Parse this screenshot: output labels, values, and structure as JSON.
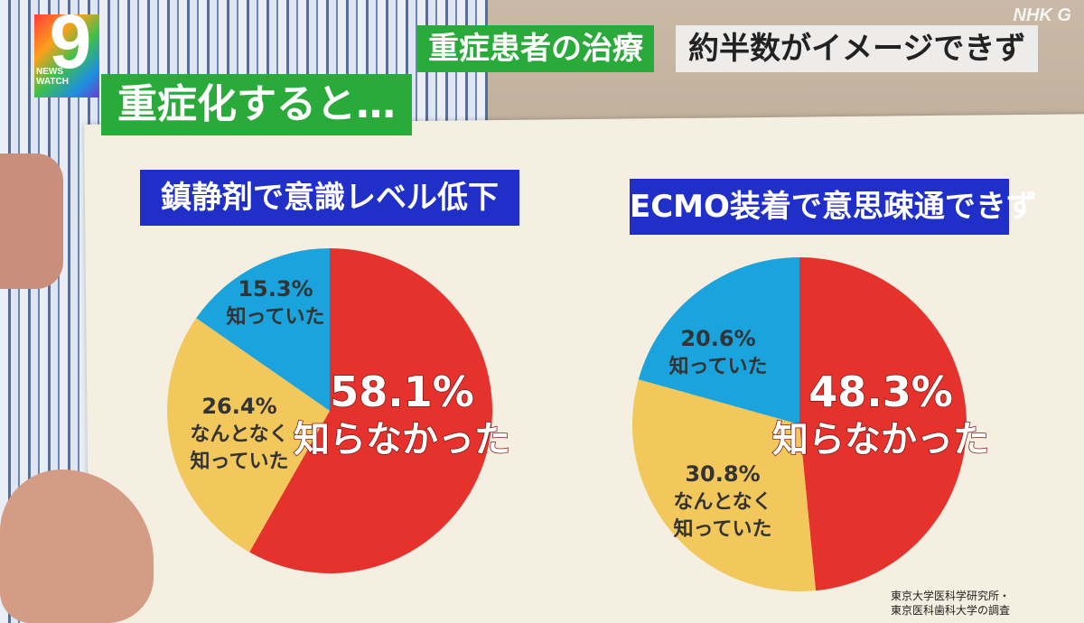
{
  "broadcast": {
    "watermark": "NHK G",
    "logo_number": "9",
    "logo_line1": "NEWS",
    "logo_line2": "WATCH",
    "caption_topic": "重症患者の治療",
    "caption_headline": "約半数がイメージできず",
    "caption_sub": "重症化すると…"
  },
  "source": {
    "line1": "東京大学医科学研究所・",
    "line2": "東京医科歯科大学の調査"
  },
  "colors": {
    "did_not_know": "#e6322c",
    "somewhat_knew": "#f2c85c",
    "knew": "#1aa3dc",
    "title_bg": "#1f2fc8",
    "caption_green": "#2aaa3a"
  },
  "chart_data": [
    {
      "type": "pie",
      "title": "鎮静剤で意識レベル低下",
      "slices": [
        {
          "label": "知らなかった",
          "value": 58.1,
          "value_text": "58.1%",
          "color": "#e6322c"
        },
        {
          "label": "なんとなく\n知っていた",
          "value": 26.4,
          "value_text": "26.4%",
          "color": "#f2c85c"
        },
        {
          "label": "知っていた",
          "value": 15.3,
          "value_text": "15.3%",
          "color": "#1aa3dc"
        }
      ]
    },
    {
      "type": "pie",
      "title": "ECMO装着で意思疎通できず",
      "slices": [
        {
          "label": "知らなかった",
          "value": 48.3,
          "value_text": "48.3%",
          "color": "#e6322c"
        },
        {
          "label": "なんとなく\n知っていた",
          "value": 30.8,
          "value_text": "30.8%",
          "color": "#f2c85c"
        },
        {
          "label": "知っていた",
          "value": 20.6,
          "value_text": "20.6%",
          "color": "#1aa3dc"
        }
      ]
    }
  ]
}
